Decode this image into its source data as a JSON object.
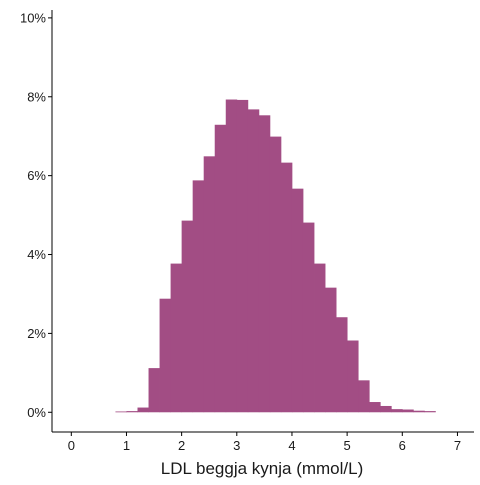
{
  "chart_data": {
    "type": "bar",
    "title": "",
    "xlabel": "LDL beggja kynja (mmol/L)",
    "ylabel": "",
    "xlim": [
      -0.35,
      7.3
    ],
    "ylim": [
      -0.5,
      10.2
    ],
    "x_ticks": [
      0,
      1,
      2,
      3,
      4,
      5,
      6,
      7
    ],
    "y_ticks": [
      0,
      2,
      4,
      6,
      8,
      10
    ],
    "y_tick_format": "percent",
    "grid": false,
    "legend": "none",
    "bar_color": "#A24D84",
    "bin_width": 0.2,
    "bins": [
      {
        "x0": 0.8,
        "value": 0.02
      },
      {
        "x0": 1.0,
        "value": 0.03
      },
      {
        "x0": 1.2,
        "value": 0.12
      },
      {
        "x0": 1.4,
        "value": 1.12
      },
      {
        "x0": 1.6,
        "value": 2.88
      },
      {
        "x0": 1.8,
        "value": 3.77
      },
      {
        "x0": 2.0,
        "value": 4.86
      },
      {
        "x0": 2.2,
        "value": 5.88
      },
      {
        "x0": 2.4,
        "value": 6.49
      },
      {
        "x0": 2.6,
        "value": 7.29
      },
      {
        "x0": 2.8,
        "value": 7.93
      },
      {
        "x0": 3.0,
        "value": 7.92
      },
      {
        "x0": 3.2,
        "value": 7.68
      },
      {
        "x0": 3.4,
        "value": 7.53
      },
      {
        "x0": 3.6,
        "value": 6.99
      },
      {
        "x0": 3.8,
        "value": 6.33
      },
      {
        "x0": 4.0,
        "value": 5.67
      },
      {
        "x0": 4.2,
        "value": 4.81
      },
      {
        "x0": 4.4,
        "value": 3.77
      },
      {
        "x0": 4.6,
        "value": 3.16
      },
      {
        "x0": 4.8,
        "value": 2.41
      },
      {
        "x0": 5.0,
        "value": 1.82
      },
      {
        "x0": 5.2,
        "value": 0.81
      },
      {
        "x0": 5.4,
        "value": 0.26
      },
      {
        "x0": 5.6,
        "value": 0.16
      },
      {
        "x0": 5.8,
        "value": 0.08
      },
      {
        "x0": 6.0,
        "value": 0.07
      },
      {
        "x0": 6.2,
        "value": 0.04
      },
      {
        "x0": 6.4,
        "value": 0.03
      }
    ]
  }
}
